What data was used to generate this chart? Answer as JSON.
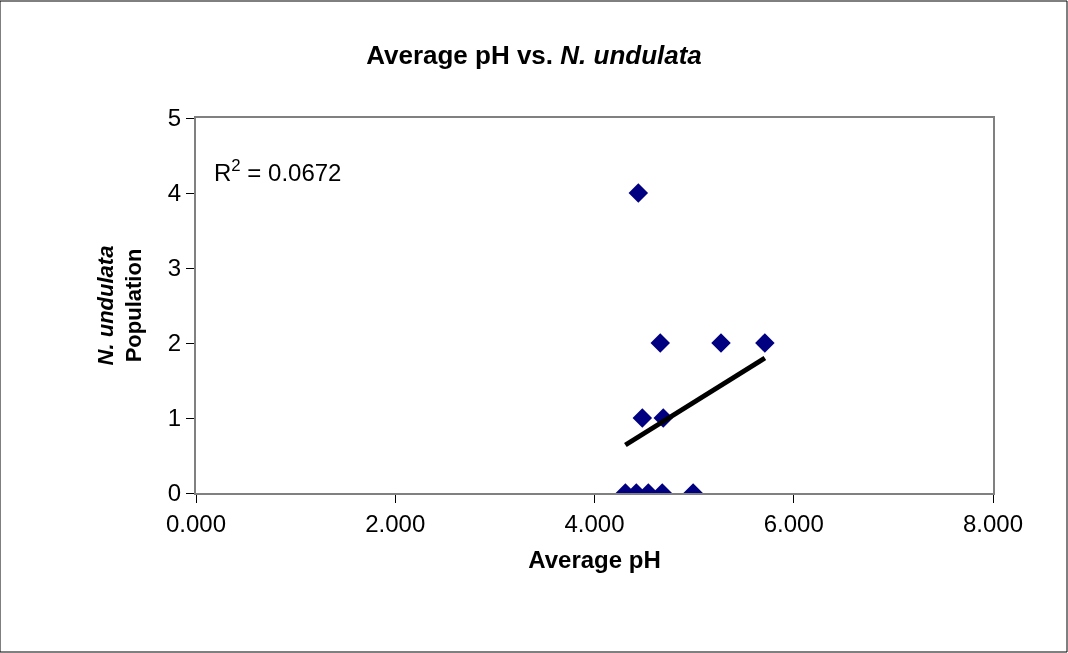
{
  "chart_data": {
    "type": "scatter",
    "title": "Average pH vs. *N. undulata*",
    "xlabel": "Average pH",
    "ylabel": "*N. undulata*\nPopulation",
    "xlim": [
      0,
      8
    ],
    "xticks": [
      {
        "value": 0,
        "label": "0.000"
      },
      {
        "value": 2,
        "label": "2.000"
      },
      {
        "value": 4,
        "label": "4.000"
      },
      {
        "value": 6,
        "label": "6.000"
      },
      {
        "value": 8,
        "label": "8.000"
      }
    ],
    "ylim": [
      0,
      5
    ],
    "yticks": [
      0,
      1,
      2,
      3,
      4,
      5
    ],
    "annotations": [
      "R$^{2}$ = 0.0672"
    ],
    "series": [
      {
        "color": "#000080",
        "marker": "diamond",
        "x": [
          4.44,
          4.66,
          5.27,
          5.71,
          4.48,
          4.69,
          4.31,
          4.42,
          4.54,
          4.68,
          4.99
        ],
        "values": [
          4,
          2,
          2,
          2,
          1,
          1,
          0,
          0,
          0,
          0,
          0
        ]
      },
      {
        "type": "line",
        "color": "#000000",
        "x": [
          4.31,
          5.71
        ],
        "values": [
          0.64,
          1.8
        ]
      }
    ]
  }
}
